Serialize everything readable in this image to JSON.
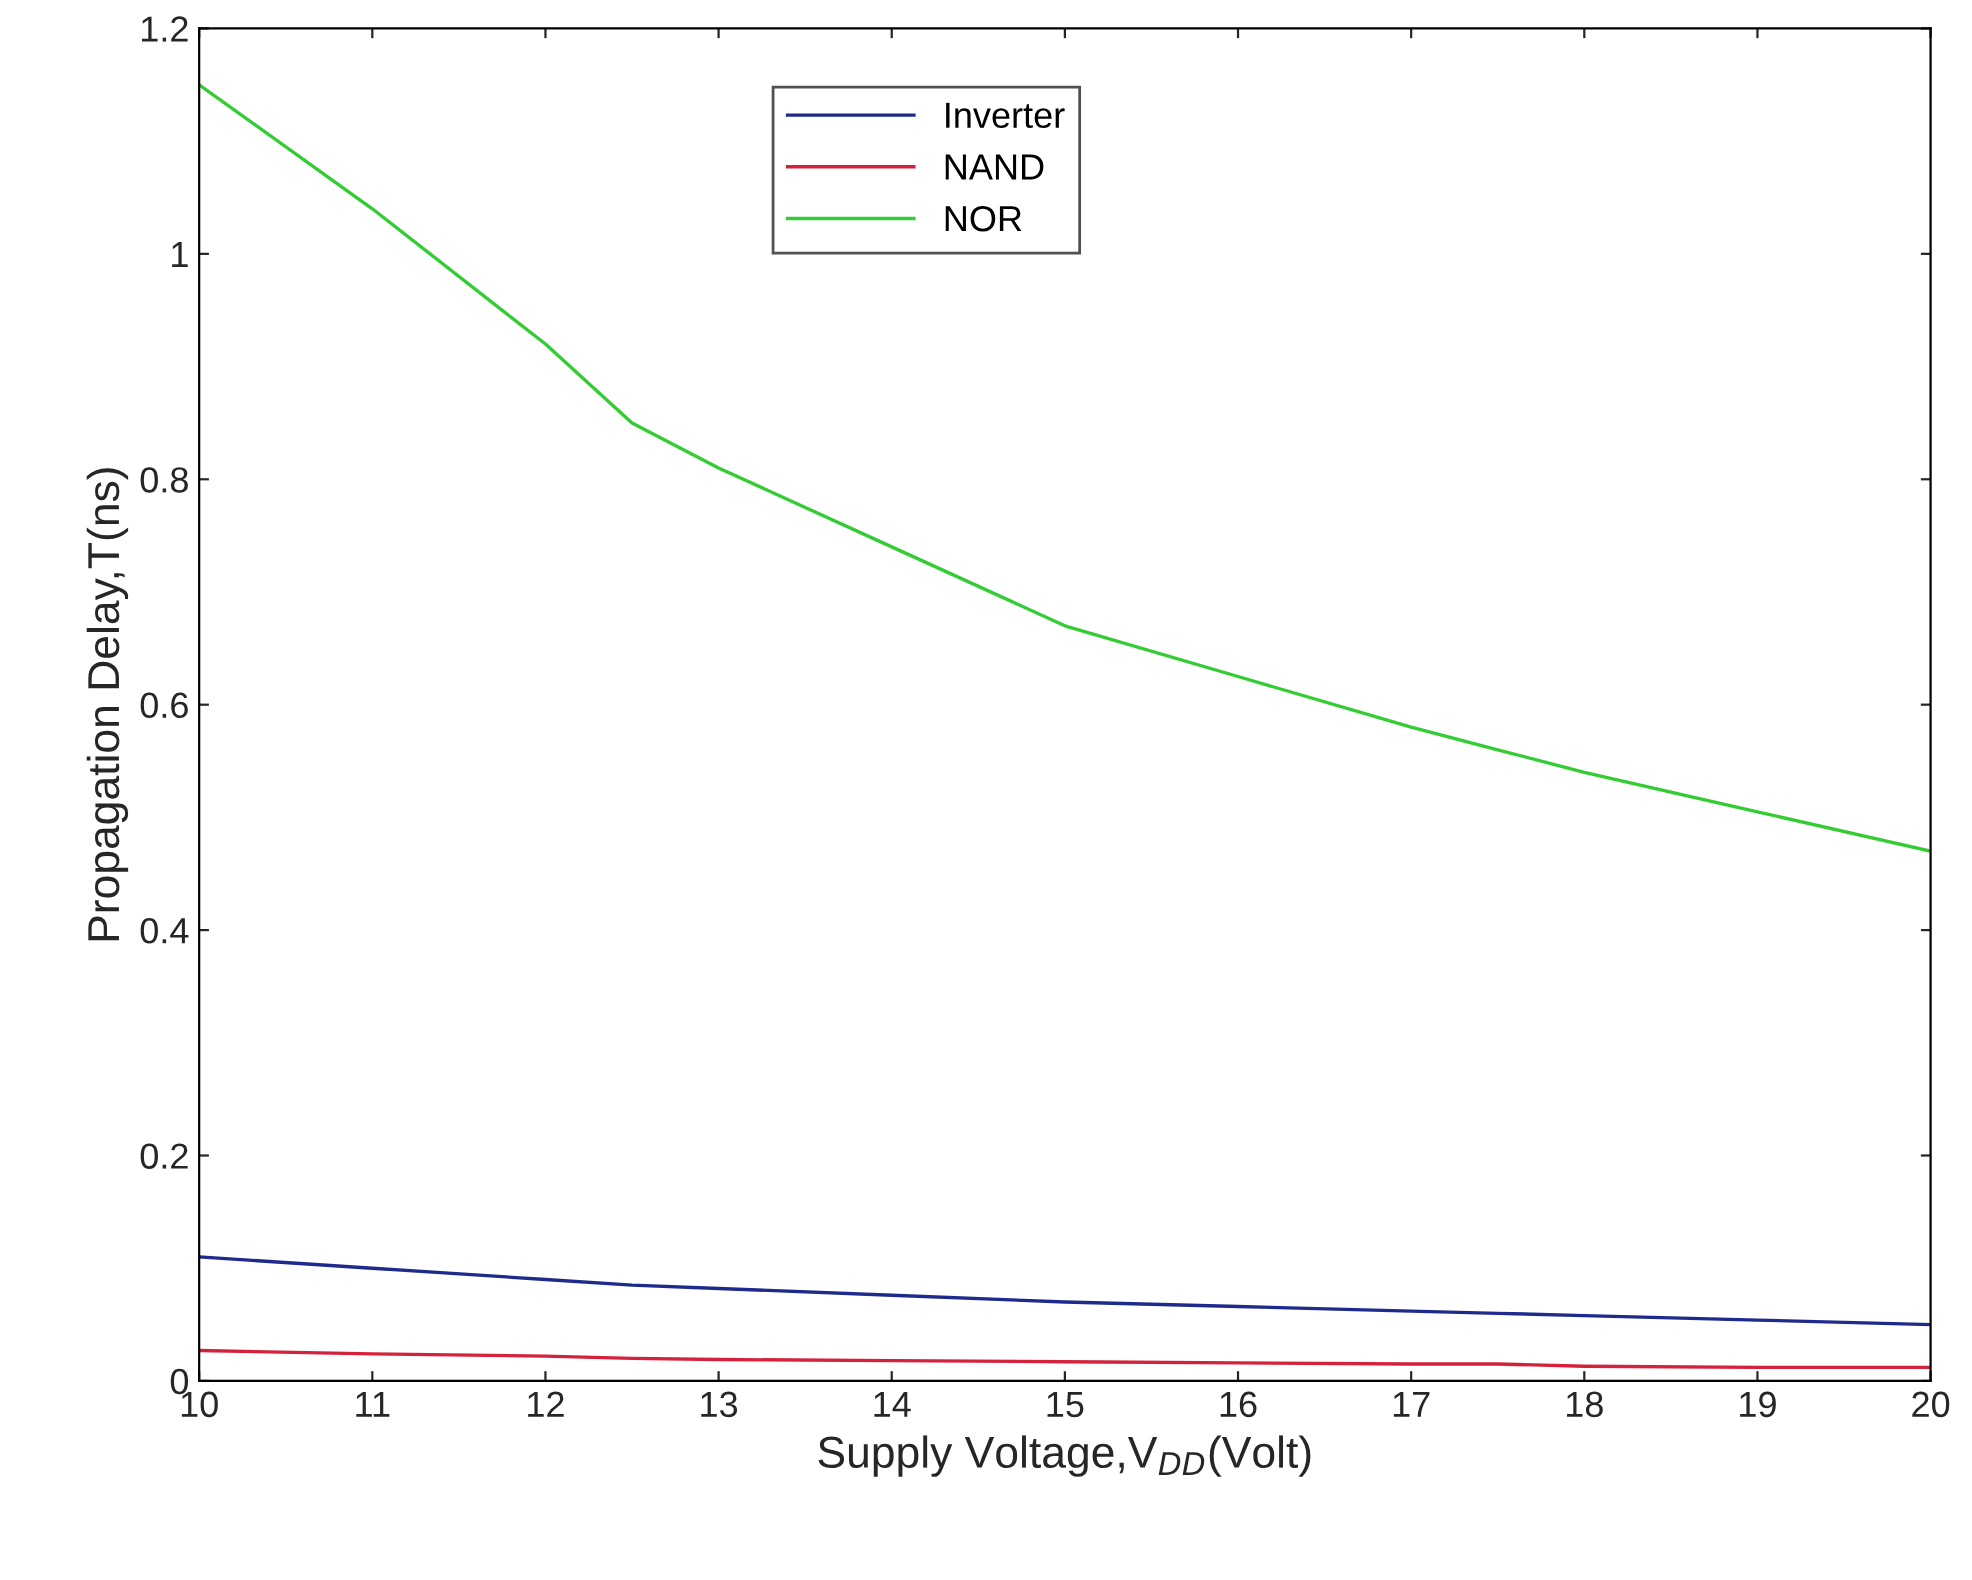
{
  "chart_data": {
    "type": "line",
    "xlabel": "Supply Voltage,V$_{DD}$(Volt)",
    "ylabel": "Propagation Delay,T(ns)",
    "xlim": [
      10,
      20
    ],
    "xticks": [
      10,
      11,
      12,
      13,
      14,
      15,
      16,
      17,
      18,
      19,
      20
    ],
    "ylim": [
      0,
      1.2
    ],
    "yticks": [
      0,
      0.2,
      0.4,
      0.6,
      0.8,
      1,
      1.2
    ],
    "grid": false,
    "legend": "top",
    "marker": "none",
    "line_style": "solid",
    "series": [
      {
        "name": "Inverter",
        "color": "#1f2b8c",
        "x": [
          10,
          11,
          12,
          12.5,
          13,
          14,
          15,
          16,
          17,
          17.5,
          18,
          19,
          20
        ],
        "values": [
          0.11,
          0.1,
          0.09,
          0.085,
          0.082,
          0.076,
          0.07,
          0.066,
          0.062,
          0.06,
          0.058,
          0.054,
          0.05
        ]
      },
      {
        "name": "NAND",
        "color": "#d4223c",
        "x": [
          10,
          11,
          12,
          12.5,
          13,
          14,
          15,
          16,
          17,
          17.5,
          18,
          19,
          20
        ],
        "values": [
          0.027,
          0.024,
          0.022,
          0.02,
          0.019,
          0.018,
          0.017,
          0.016,
          0.015,
          0.015,
          0.013,
          0.012,
          0.012
        ]
      },
      {
        "name": "NOR",
        "color": "#33cc33",
        "x": [
          10,
          11,
          12,
          12.5,
          13,
          14,
          15,
          16,
          17,
          17.5,
          18,
          19,
          20
        ],
        "values": [
          1.15,
          1.04,
          0.92,
          0.85,
          0.81,
          0.74,
          0.67,
          0.625,
          0.58,
          0.56,
          0.54,
          0.505,
          0.47
        ]
      }
    ]
  }
}
